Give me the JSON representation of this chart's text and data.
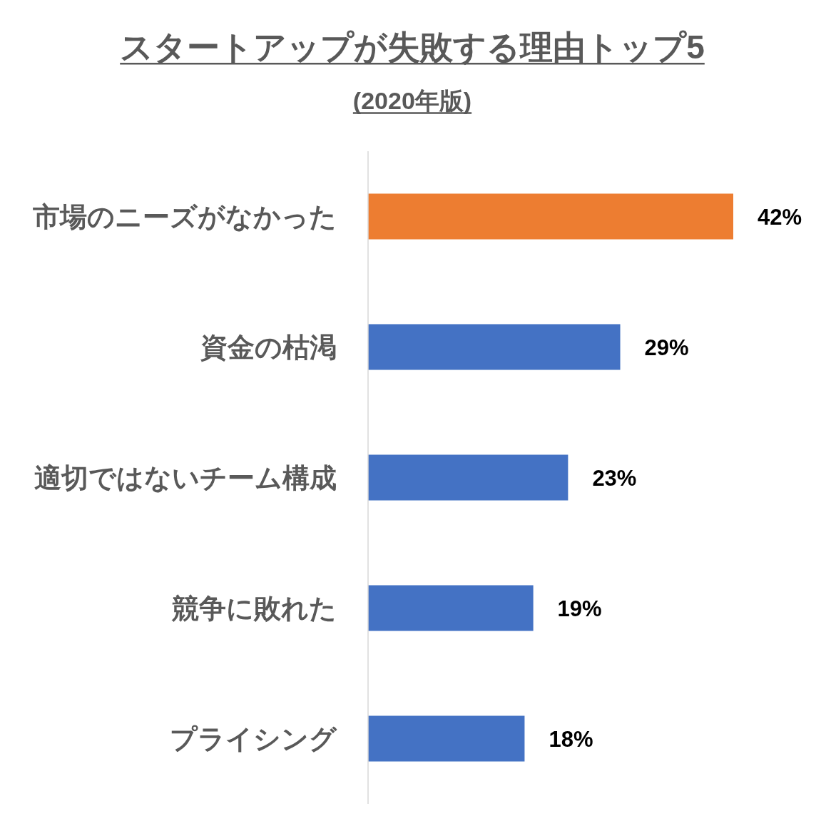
{
  "chart_data": {
    "type": "bar",
    "orientation": "horizontal",
    "title": "スタートアップが失敗する理由トップ5",
    "subtitle": "(2020年版)",
    "categories": [
      "市場のニーズがなかった",
      "資金の枯渇",
      "適切ではないチーム構成",
      "競争に敗れた",
      "プライシング"
    ],
    "values": [
      42,
      29,
      23,
      19,
      18
    ],
    "colors": [
      "#ed7d31",
      "#4472c4",
      "#4472c4",
      "#4472c4",
      "#4472c4"
    ],
    "value_labels": [
      "42%",
      "29%",
      "23%",
      "19%",
      "18%"
    ],
    "tick_labels": "y"
  }
}
